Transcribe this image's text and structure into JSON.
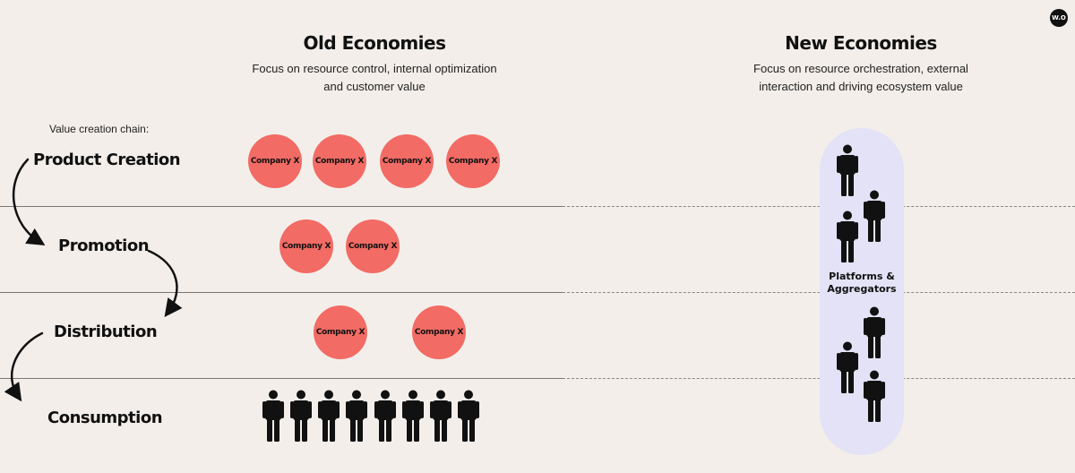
{
  "old": {
    "title": "Old Economies",
    "subtitle": [
      "Focus on resource control, internal optimization",
      "and customer value"
    ]
  },
  "new": {
    "title": "New Economies",
    "subtitle": [
      "Focus on resource orchestration, external",
      "interaction and driving ecosystem value"
    ]
  },
  "chain": {
    "label": "Value creation chain:",
    "stages": [
      "Product Creation",
      "Promotion",
      "Distribution",
      "Consumption"
    ]
  },
  "company_label": "Company X",
  "platform": {
    "label": [
      "Platforms &",
      "Aggregators"
    ]
  },
  "logo": "W.O",
  "colors": {
    "background": "#f3eeea",
    "company": "#f26b64",
    "pill": "#e3e2f6"
  }
}
